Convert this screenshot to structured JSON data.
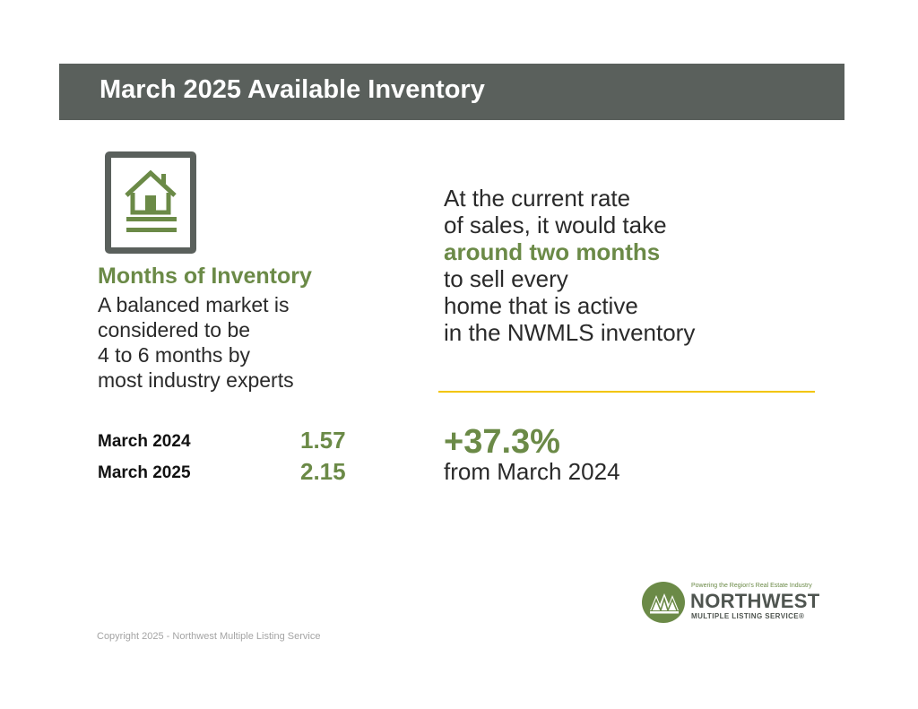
{
  "header": {
    "title": "March 2025 Available Inventory"
  },
  "metric": {
    "icon": "house-document-icon",
    "title": "Months of Inventory",
    "description_lines": [
      "A balanced market is",
      "considered to be",
      "4 to 6 months by",
      "most industry experts"
    ]
  },
  "stats": [
    {
      "label": "March 2024",
      "value": "1.57"
    },
    {
      "label": "March 2025",
      "value": "2.15"
    }
  ],
  "narrative": {
    "lines": [
      "At the current rate",
      "of sales, it would take",
      "around two months",
      "to sell every",
      "home that is active",
      "in the NWMLS inventory"
    ],
    "emphasis_line_index": 2
  },
  "change": {
    "value": "+37.3%",
    "caption": "from March 2024"
  },
  "logo": {
    "tagline": "Powering the Region's Real Estate Industry",
    "name": "NORTHWEST",
    "sub": "MULTIPLE LISTING SERVICE®"
  },
  "footer": {
    "copyright": "Copyright 2025 - Northwest Multiple Listing Service"
  },
  "colors": {
    "banner": "#5a605c",
    "accent_green": "#6b8a47",
    "divider_yellow": "#f2c500"
  }
}
